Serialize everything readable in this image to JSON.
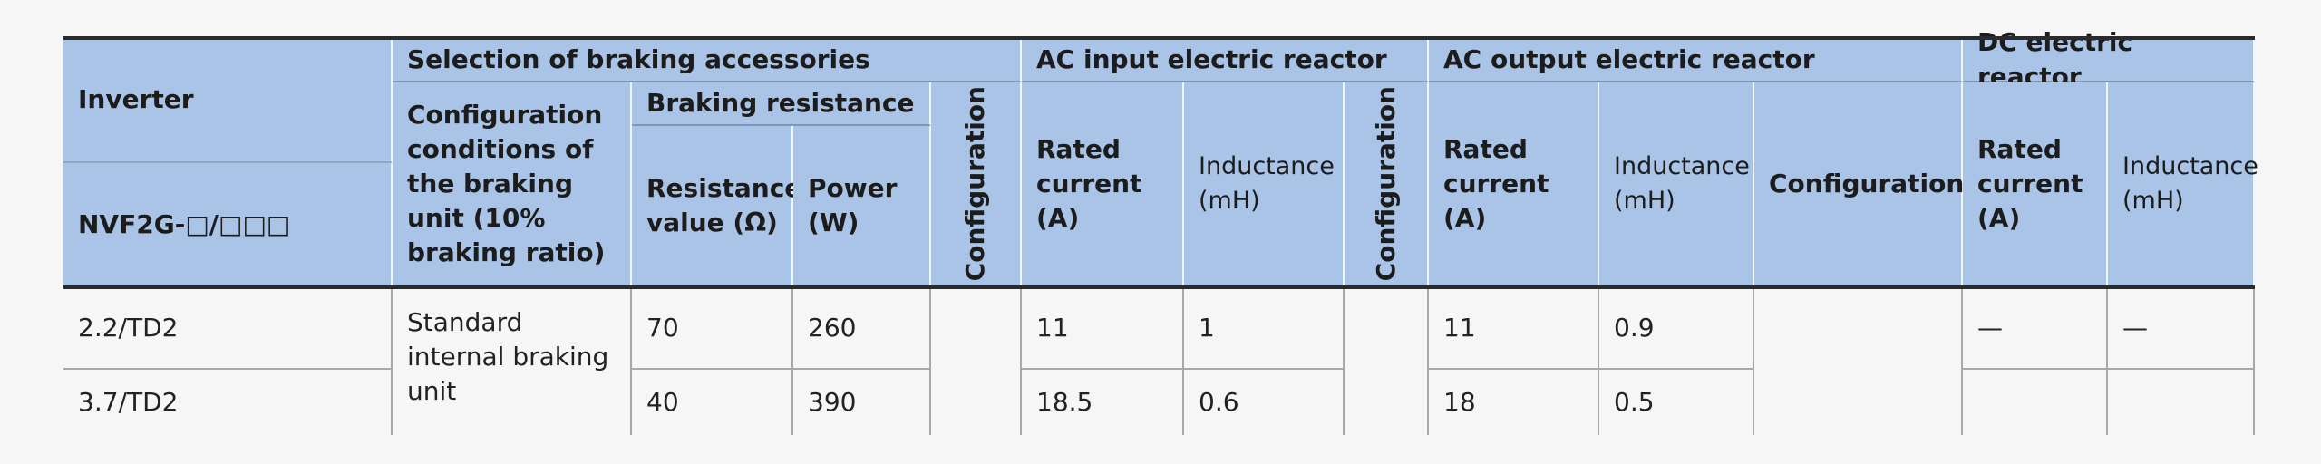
{
  "table": {
    "header": {
      "inverter": "Inverter",
      "model": "NVF2G-□/□□□",
      "groups": [
        "Selection of braking accessories",
        "AC input electric reactor",
        "AC output electric reactor",
        "DC electric reactor"
      ],
      "braking_config": "Configuration conditions of the braking unit (10% braking ratio)",
      "braking_resistance": "Braking resistance",
      "columns": [
        "Resistance value (Ω)",
        "Power (W)",
        "Configuration",
        "Rated current (A)",
        "Inductance (mH)",
        "Configuration",
        "Rated current (A)",
        "Inductance (mH)",
        "Configuration",
        "Rated current (A)",
        "Inductance (mH)"
      ]
    },
    "braking_unit": "Standard internal braking unit",
    "rows": [
      {
        "inverter": "2.2/TD2",
        "resistance": "70",
        "power": "260",
        "ac_in_current": "11",
        "ac_in_inductance": "1",
        "ac_out_current": "11",
        "ac_out_inductance": "0.9",
        "dc_current": "—",
        "dc_inductance": "—"
      },
      {
        "inverter": "3.7/TD2",
        "resistance": "40",
        "power": "390",
        "ac_in_current": "18.5",
        "ac_in_inductance": "0.6",
        "ac_out_current": "18",
        "ac_out_inductance": "0.5"
      }
    ]
  }
}
